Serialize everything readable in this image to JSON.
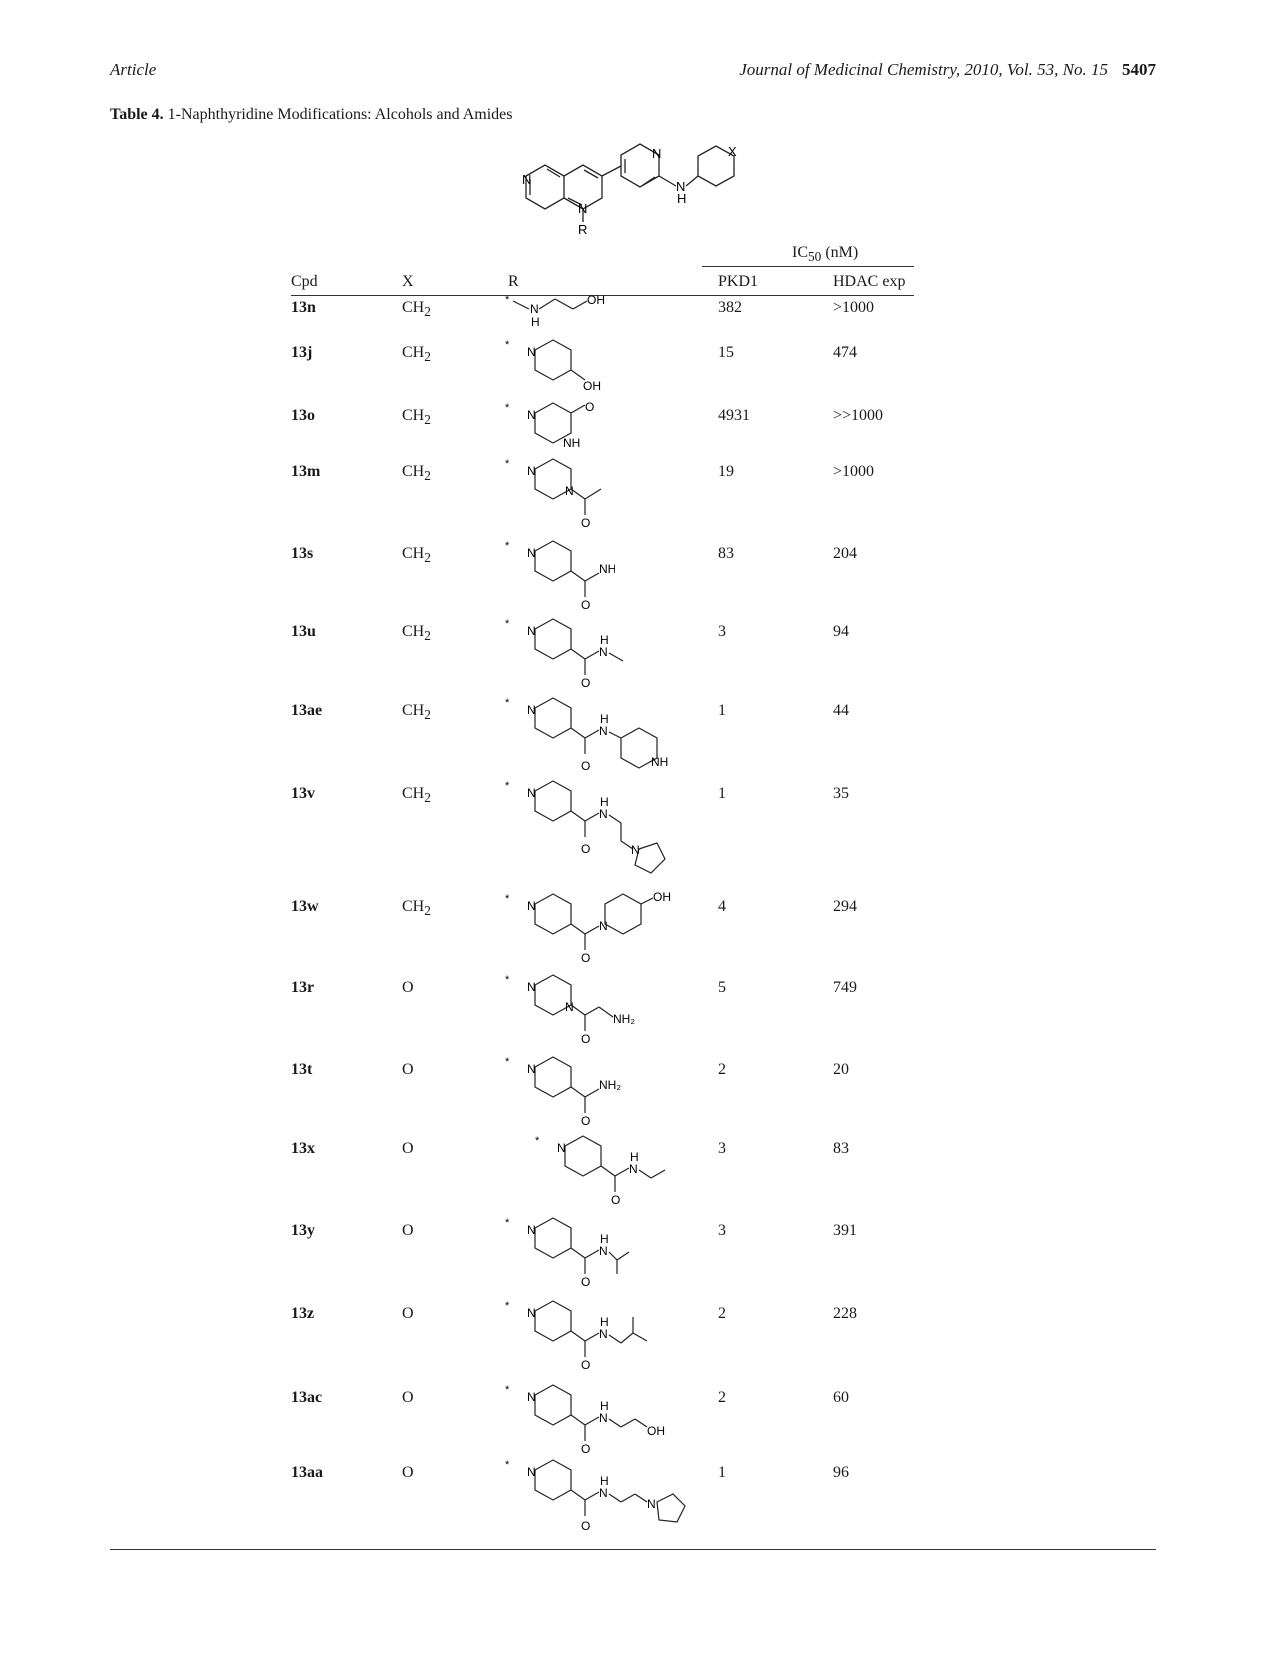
{
  "header": {
    "left": "Article",
    "journal": "Journal of Medicinal Chemistry, 2010, Vol. 53, No. 15",
    "page": "5407"
  },
  "caption": {
    "label": "Table 4.",
    "text": "1-Naphthyridine Modifications: Alcohols and Amides"
  },
  "scaffold": {
    "atoms": [
      "N",
      "N",
      "N",
      "N",
      "H",
      "X",
      "R"
    ]
  },
  "table": {
    "group_header": "IC50 (nM)",
    "columns": [
      "Cpd",
      "X",
      "R",
      "PKD1",
      "HDAC exp"
    ],
    "rows": [
      {
        "cpd": "13n",
        "x": "CH2",
        "pkd1": "382",
        "hdac": ">1000"
      },
      {
        "cpd": "13j",
        "x": "CH2",
        "pkd1": "15",
        "hdac": "474"
      },
      {
        "cpd": "13o",
        "x": "CH2",
        "pkd1": "4931",
        "hdac": ">>1000"
      },
      {
        "cpd": "13m",
        "x": "CH2",
        "pkd1": "19",
        "hdac": ">1000"
      },
      {
        "cpd": "13s",
        "x": "CH2",
        "pkd1": "83",
        "hdac": "204"
      },
      {
        "cpd": "13u",
        "x": "CH2",
        "pkd1": "3",
        "hdac": "94"
      },
      {
        "cpd": "13ae",
        "x": "CH2",
        "pkd1": "1",
        "hdac": "44"
      },
      {
        "cpd": "13v",
        "x": "CH2",
        "pkd1": "1",
        "hdac": "35"
      },
      {
        "cpd": "13w",
        "x": "CH2",
        "pkd1": "4",
        "hdac": "294"
      },
      {
        "cpd": "13r",
        "x": "O",
        "pkd1": "5",
        "hdac": "749"
      },
      {
        "cpd": "13t",
        "x": "O",
        "pkd1": "2",
        "hdac": "20"
      },
      {
        "cpd": "13x",
        "x": "O",
        "pkd1": "3",
        "hdac": "83"
      },
      {
        "cpd": "13y",
        "x": "O",
        "pkd1": "3",
        "hdac": "391"
      },
      {
        "cpd": "13z",
        "x": "O",
        "pkd1": "2",
        "hdac": "228"
      },
      {
        "cpd": "13ac",
        "x": "O",
        "pkd1": "2",
        "hdac": "60"
      },
      {
        "cpd": "13aa",
        "x": "O",
        "pkd1": "1",
        "hdac": "96"
      }
    ]
  }
}
